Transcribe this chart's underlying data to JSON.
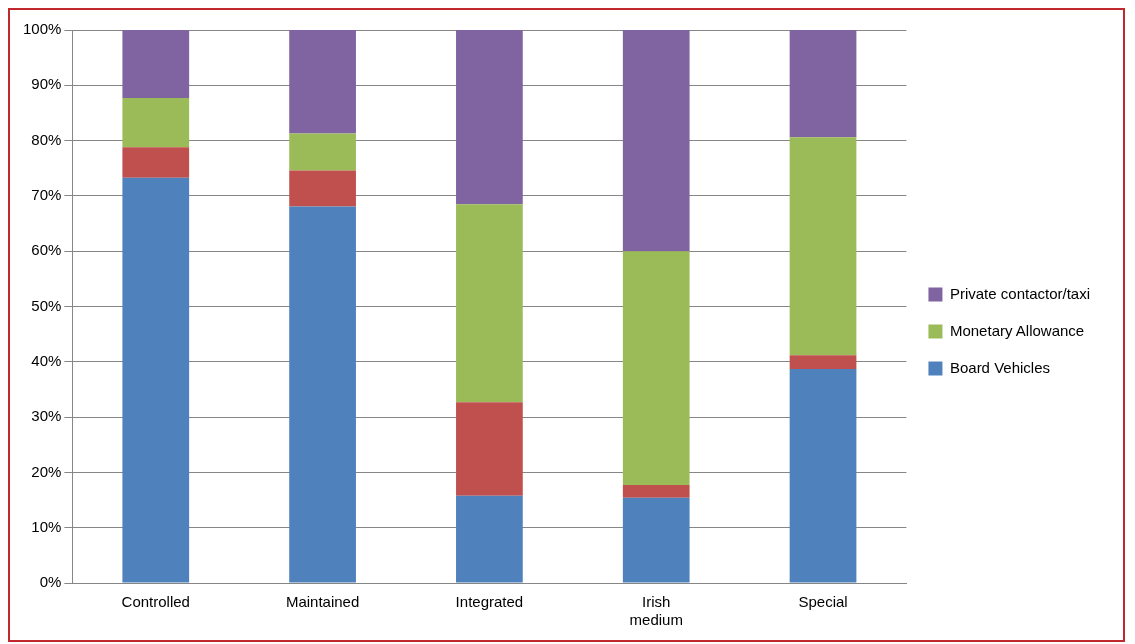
{
  "chart_data": {
    "type": "bar",
    "stacked": true,
    "categories": [
      "Controlled",
      "Maintained",
      "Integrated",
      "Irish medium",
      "Special"
    ],
    "series": [
      {
        "name": "Board Vehicles",
        "color": "#4f81bd",
        "values": [
          73.3,
          68.1,
          15.8,
          15.4,
          38.7
        ]
      },
      {
        "color": "#c0504d",
        "values": [
          5.5,
          6.5,
          16.9,
          2.3,
          2.5
        ]
      },
      {
        "name": "Monetary Allowance",
        "color": "#9bbb59",
        "values": [
          8.9,
          6.7,
          35.8,
          42.3,
          39.4
        ]
      },
      {
        "name": "Private contactor/taxi",
        "color": "#8064a2",
        "values": [
          12.3,
          18.7,
          31.5,
          40.0,
          19.4
        ]
      }
    ],
    "ylim": [
      0,
      100
    ],
    "yticks": [
      {
        "value": 0,
        "label": "0%"
      },
      {
        "value": 10,
        "label": "10%"
      },
      {
        "value": 20,
        "label": "20%"
      },
      {
        "value": 30,
        "label": "30%"
      },
      {
        "value": 40,
        "label": "40%"
      },
      {
        "value": 50,
        "label": "50%"
      },
      {
        "value": 60,
        "label": "60%"
      },
      {
        "value": 70,
        "label": "70%"
      },
      {
        "value": 80,
        "label": "80%"
      },
      {
        "value": 90,
        "label": "90%"
      },
      {
        "value": 100,
        "label": "100%"
      }
    ],
    "grid": "y",
    "legend": "right"
  }
}
